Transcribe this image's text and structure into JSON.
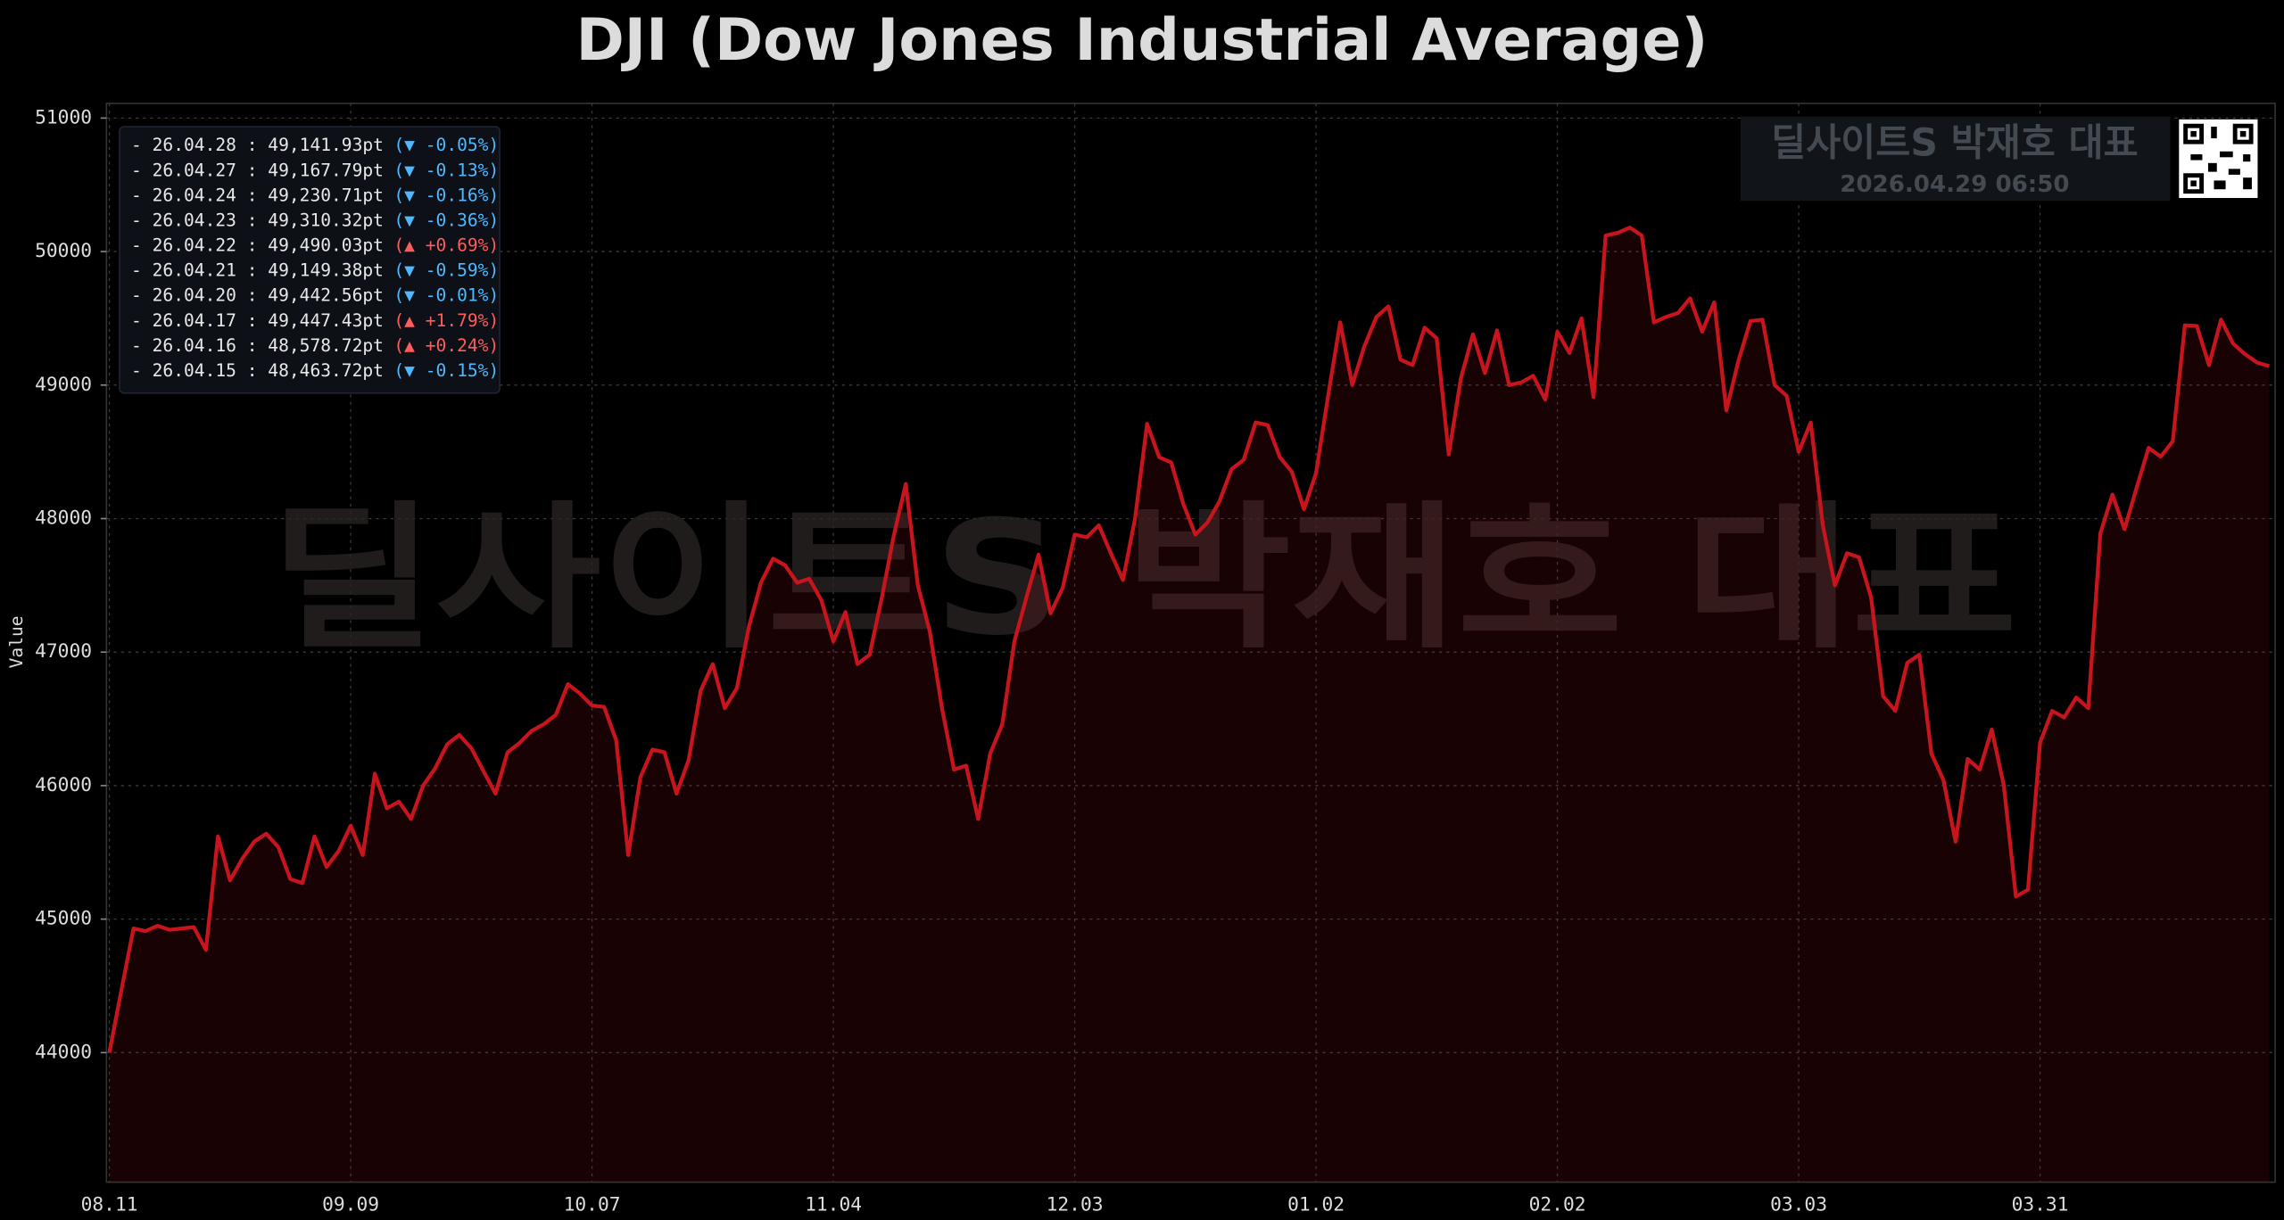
{
  "chart_data": {
    "type": "line",
    "title": "DJI (Dow Jones Industrial Average)",
    "y_label": "Value",
    "categories": [
      "08.11",
      null,
      null,
      null,
      null,
      null,
      null,
      null,
      null,
      null,
      null,
      null,
      null,
      null,
      null,
      null,
      null,
      null,
      null,
      null,
      "09.09",
      null,
      null,
      null,
      null,
      null,
      null,
      null,
      null,
      null,
      null,
      null,
      null,
      null,
      null,
      null,
      null,
      null,
      null,
      null,
      "10.07",
      null,
      null,
      null,
      null,
      null,
      null,
      null,
      null,
      null,
      null,
      null,
      null,
      null,
      null,
      null,
      null,
      null,
      null,
      null,
      "11.04",
      null,
      null,
      null,
      null,
      null,
      null,
      null,
      null,
      null,
      null,
      null,
      null,
      null,
      null,
      null,
      null,
      null,
      null,
      null,
      "12.03",
      null,
      null,
      null,
      null,
      null,
      null,
      null,
      null,
      null,
      null,
      null,
      null,
      null,
      null,
      null,
      null,
      null,
      null,
      null,
      "01.02",
      null,
      null,
      null,
      null,
      null,
      null,
      null,
      null,
      null,
      null,
      null,
      null,
      null,
      null,
      null,
      null,
      null,
      null,
      null,
      "02.02",
      null,
      null,
      null,
      null,
      null,
      null,
      null,
      null,
      null,
      null,
      null,
      null,
      null,
      null,
      null,
      null,
      null,
      null,
      null,
      "03.03",
      null,
      null,
      null,
      null,
      null,
      null,
      null,
      null,
      null,
      null,
      null,
      null,
      null,
      null,
      null,
      null,
      null,
      null,
      null,
      "03.31",
      null,
      null,
      null,
      null,
      null,
      null,
      null,
      null,
      null,
      null,
      null,
      null,
      null,
      null,
      null,
      null,
      null,
      null,
      null
    ],
    "series": [
      {
        "color": "#c8141c",
        "values": [
          44000,
          44470,
          44930,
          44910,
          44950,
          44920,
          44930,
          44940,
          44770,
          45620,
          45290,
          45450,
          45580,
          45640,
          45540,
          45300,
          45270,
          45620,
          45390,
          45510,
          45700,
          45480,
          46090,
          45830,
          45880,
          45750,
          46000,
          46130,
          46310,
          46380,
          46280,
          46110,
          45940,
          46250,
          46320,
          46410,
          46460,
          46530,
          46760,
          46690,
          46600,
          46590,
          46340,
          45480,
          46060,
          46270,
          46250,
          45940,
          46190,
          46710,
          46910,
          46580,
          46730,
          47190,
          47520,
          47700,
          47650,
          47520,
          47550,
          47390,
          47080,
          47300,
          46910,
          46980,
          47400,
          47870,
          48260,
          47500,
          47150,
          46580,
          46120,
          46150,
          45750,
          46240,
          46460,
          47080,
          47410,
          47730,
          47290,
          47480,
          47880,
          47860,
          47950,
          47740,
          47540,
          48000,
          48710,
          48460,
          48420,
          48110,
          47880,
          47970,
          48130,
          48370,
          48440,
          48720,
          48700,
          48460,
          48350,
          48070,
          48340,
          48920,
          49470,
          49000,
          49290,
          49510,
          49590,
          49190,
          49150,
          49430,
          49350,
          48480,
          49050,
          49380,
          49090,
          49410,
          49000,
          49020,
          49070,
          48890,
          49400,
          49240,
          49500,
          48910,
          50120,
          50140,
          50180,
          50120,
          49470,
          49510,
          49540,
          49650,
          49400,
          49620,
          48810,
          49180,
          49480,
          49490,
          49000,
          48920,
          48500,
          48720,
          47950,
          47500,
          47740,
          47710,
          47410,
          46670,
          46560,
          46920,
          46980,
          46240,
          46040,
          45580,
          46200,
          46120,
          46420,
          46000,
          45170,
          45220,
          46320,
          46560,
          46510,
          46660,
          46580,
          47890,
          48180,
          47920,
          48230,
          48530,
          48463.72,
          48578.72,
          49447.43,
          49442.56,
          49149.38,
          49490.03,
          49310.32,
          49230.71,
          49167.79,
          49141.93
        ]
      }
    ],
    "ylim": [
      43030,
      51110
    ],
    "yticks": [
      44000,
      45000,
      46000,
      47000,
      48000,
      49000,
      50000,
      51000
    ],
    "grid": true,
    "fill_area": true,
    "legend_rows": [
      {
        "label": "- 26.04.28 : 49,141.93pt",
        "change": "(▼ -0.05%)",
        "dir": "down"
      },
      {
        "label": "- 26.04.27 : 49,167.79pt",
        "change": "(▼ -0.13%)",
        "dir": "down"
      },
      {
        "label": "- 26.04.24 : 49,230.71pt",
        "change": "(▼ -0.16%)",
        "dir": "down"
      },
      {
        "label": "- 26.04.23 : 49,310.32pt",
        "change": "(▼ -0.36%)",
        "dir": "down"
      },
      {
        "label": "- 26.04.22 : 49,490.03pt",
        "change": "(▲ +0.69%)",
        "dir": "up"
      },
      {
        "label": "- 26.04.21 : 49,149.38pt",
        "change": "(▼ -0.59%)",
        "dir": "down"
      },
      {
        "label": "- 26.04.20 : 49,442.56pt",
        "change": "(▼ -0.01%)",
        "dir": "down"
      },
      {
        "label": "- 26.04.17 : 49,447.43pt",
        "change": "(▲ +1.79%)",
        "dir": "up"
      },
      {
        "label": "- 26.04.16 : 48,578.72pt",
        "change": "(▲ +0.24%)",
        "dir": "up"
      },
      {
        "label": "- 26.04.15 : 48,463.72pt",
        "change": "(▼ -0.15%)",
        "dir": "down"
      }
    ],
    "change_colors": {
      "up": "#ff5c5c",
      "down": "#4fb8ff"
    },
    "watermark": "딜사이트S 박재호 대표",
    "stamp": "2026.04.29 06:50"
  }
}
